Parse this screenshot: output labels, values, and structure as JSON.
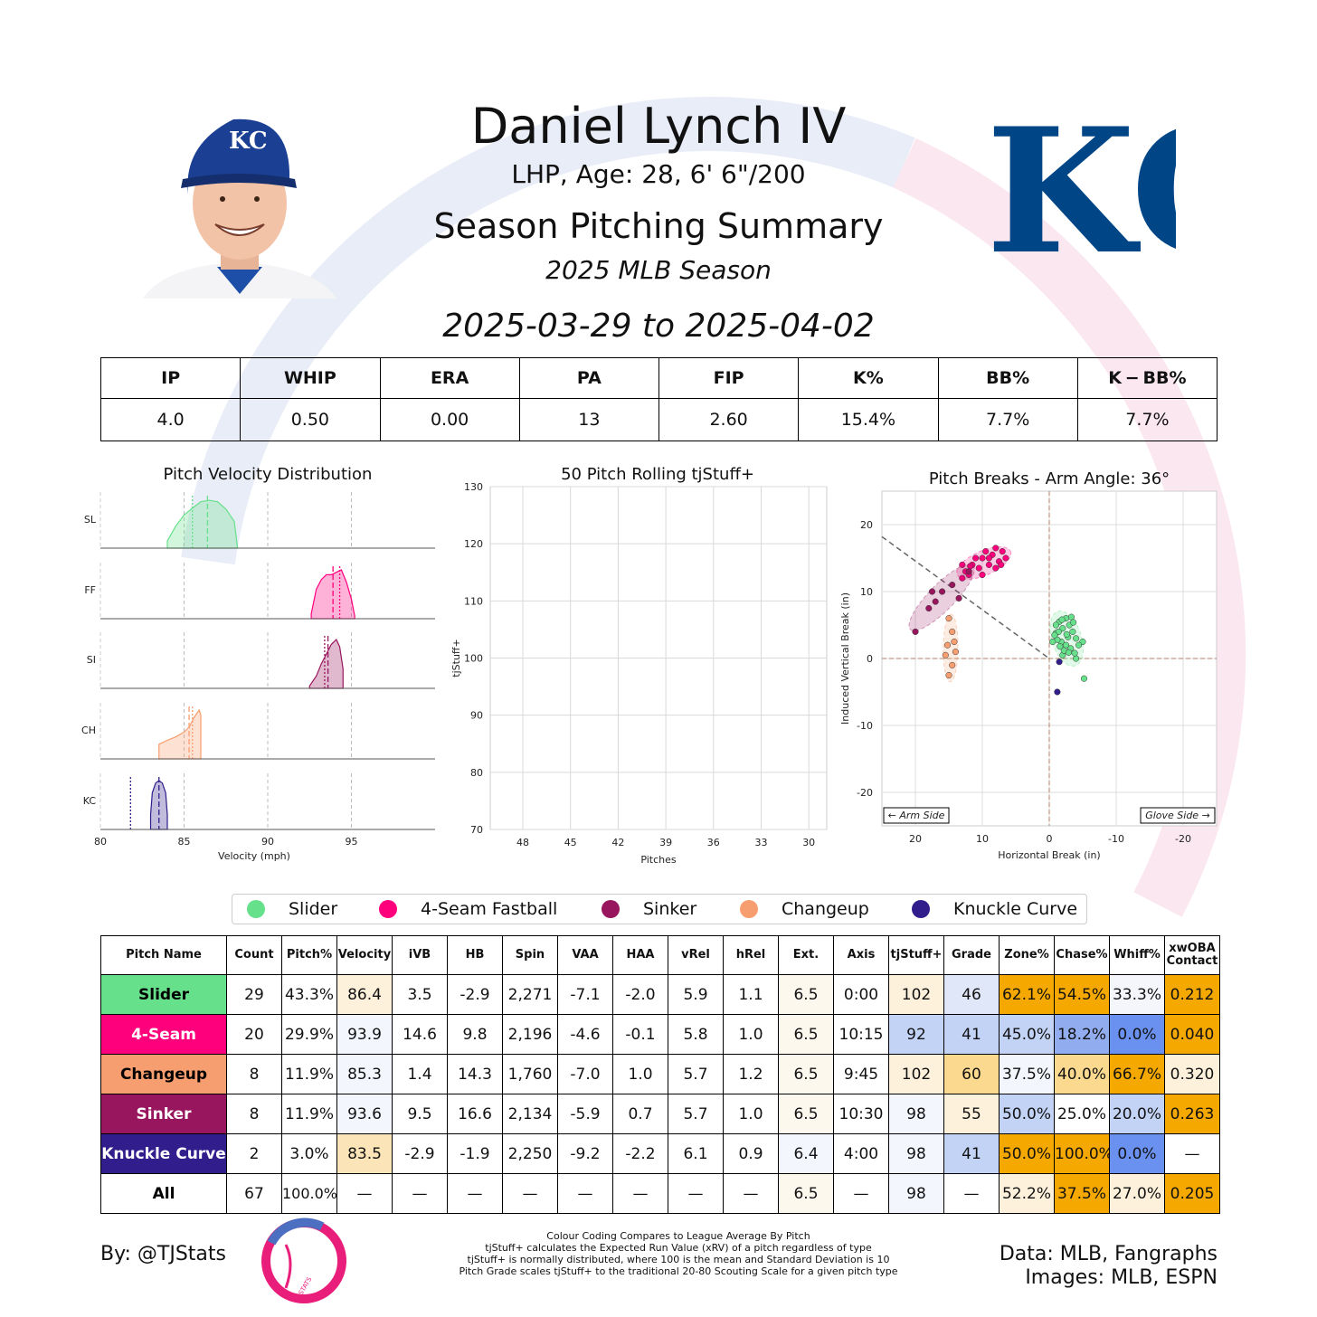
{
  "header": {
    "name": "Daniel Lynch IV",
    "bio": "LHP, Age: 28, 6' 6\"/200",
    "summary_title": "Season Pitching Summary",
    "season": "2025 MLB Season",
    "date_range": "2025-03-29 to 2025-04-02",
    "team_logo_text": "KC"
  },
  "stats": {
    "headers": [
      "IP",
      "WHIP",
      "ERA",
      "PA",
      "FIP",
      "K%",
      "BB%",
      "K − BB%"
    ],
    "values": [
      "4.0",
      "0.50",
      "0.00",
      "13",
      "2.60",
      "15.4%",
      "7.7%",
      "7.7%"
    ]
  },
  "colors": {
    "slider": "#66e08a",
    "fourseam": "#ff007d",
    "sinker": "#98165d",
    "changeup": "#f79e70",
    "knuckle_curve": "#311d8b",
    "high": "#f5a800",
    "low": "#6a91f0",
    "accent_blue": "#004687"
  },
  "chart_data": [
    {
      "type": "area",
      "title": "Pitch Velocity Distribution",
      "xlabel": "Velocity (mph)",
      "ylabel": "",
      "xlim": [
        80,
        100
      ],
      "xticks": [
        "80",
        "85",
        "90",
        "95"
      ],
      "series": [
        {
          "name": "SL",
          "mean": 86.4,
          "league_mean": 85.5,
          "x": [
            84,
            84.5,
            85,
            85.5,
            86,
            86.5,
            87,
            87.5,
            88,
            88.2
          ],
          "y": [
            0.15,
            0.45,
            0.68,
            0.82,
            0.95,
            0.98,
            0.95,
            0.8,
            0.55,
            0.0
          ]
        },
        {
          "name": "FF",
          "mean": 93.9,
          "league_mean": 94.3,
          "x": [
            92.6,
            92.9,
            93.2,
            93.5,
            93.8,
            94.1,
            94.4,
            94.7,
            95.0,
            95.2
          ],
          "y": [
            0.1,
            0.6,
            0.8,
            0.9,
            0.9,
            0.95,
            1.0,
            0.75,
            0.4,
            0.05
          ]
        },
        {
          "name": "SI",
          "mean": 93.6,
          "league_mean": 93.4,
          "x": [
            92.5,
            92.9,
            93.2,
            93.5,
            93.8,
            94.1,
            94.3,
            94.5
          ],
          "y": [
            0.05,
            0.25,
            0.5,
            0.7,
            0.9,
            1.0,
            0.85,
            0.4
          ]
        },
        {
          "name": "CH",
          "mean": 85.3,
          "league_mean": 85.5,
          "x": [
            83.5,
            84.0,
            84.5,
            85.0,
            85.3,
            85.6,
            85.9,
            86.0
          ],
          "y": [
            0.3,
            0.38,
            0.45,
            0.55,
            0.65,
            0.85,
            1.0,
            0.9
          ]
        },
        {
          "name": "KC",
          "mean": 83.5,
          "league_mean": 81.8,
          "x": [
            83.0,
            83.1,
            83.3,
            83.5,
            83.7,
            83.9,
            84.0
          ],
          "y": [
            0.3,
            0.75,
            0.95,
            1.0,
            0.95,
            0.75,
            0.3
          ]
        }
      ]
    },
    {
      "type": "line",
      "title": "50 Pitch Rolling tjStuff+",
      "xlabel": "Pitches",
      "ylabel": "tjStuff+",
      "ylim": [
        70,
        130
      ],
      "yticks": [
        "130",
        "120",
        "110",
        "100",
        "90",
        "80",
        "70"
      ],
      "xticks": [
        "48",
        "45",
        "42",
        "39",
        "36",
        "33",
        "30"
      ],
      "series": []
    },
    {
      "type": "scatter",
      "title": "Pitch Breaks - Arm Angle: 36°",
      "xlabel": "Horizontal Break (in)",
      "ylabel": "Induced Vertical Break (in)",
      "xlim": [
        25,
        -25
      ],
      "ylim": [
        -25,
        25
      ],
      "xticks": [
        "20",
        "10",
        "0",
        "-10",
        "-20"
      ],
      "yticks": [
        "20",
        "10",
        "0",
        "-10",
        "-20"
      ],
      "arm_side_label": "← Arm Side",
      "glove_side_label": "Glove Side →",
      "series": [
        {
          "name": "Slider",
          "points": [
            [
              -1.5,
              5.5
            ],
            [
              -2.5,
              6
            ],
            [
              -3,
              5
            ],
            [
              -2,
              4.5
            ],
            [
              -1,
              3.8
            ],
            [
              -2.8,
              3.2
            ],
            [
              -3.5,
              4
            ],
            [
              -1.8,
              2.5
            ],
            [
              -2.5,
              2
            ],
            [
              -3.2,
              1.5
            ],
            [
              -4,
              3
            ],
            [
              -1.2,
              2.8
            ],
            [
              -0.5,
              2.5
            ],
            [
              -2,
              0.5
            ],
            [
              -4,
              0
            ],
            [
              -5,
              2.5
            ],
            [
              -5.2,
              -3
            ],
            [
              -1,
              5
            ],
            [
              -2.2,
              1.2
            ],
            [
              -3.8,
              0.8
            ],
            [
              -1.4,
              4
            ],
            [
              -2.6,
              3.6
            ],
            [
              -3.3,
              6.2
            ],
            [
              -1.9,
              5.8
            ],
            [
              -0.8,
              3.5
            ],
            [
              -4.4,
              2
            ],
            [
              -2.9,
              0.9
            ],
            [
              -1.6,
              1.8
            ],
            [
              -3.6,
              5.4
            ]
          ]
        },
        {
          "name": "4-Seam Fastball",
          "points": [
            [
              13,
              14
            ],
            [
              12.5,
              13
            ],
            [
              11.5,
              14
            ],
            [
              10.5,
              13.5
            ],
            [
              10,
              15
            ],
            [
              9,
              14
            ],
            [
              8,
              13.5
            ],
            [
              7.5,
              14.5
            ],
            [
              8.5,
              15.5
            ],
            [
              9.5,
              16
            ],
            [
              7,
              16
            ],
            [
              6.5,
              15
            ],
            [
              11,
              15
            ],
            [
              12,
              12.5
            ],
            [
              13,
              12
            ],
            [
              10,
              12.5
            ],
            [
              8,
              16.5
            ],
            [
              9,
              15
            ],
            [
              7.2,
              14
            ],
            [
              11.8,
              13.8
            ]
          ]
        },
        {
          "name": "Sinker",
          "points": [
            [
              20,
              4
            ],
            [
              17.5,
              10
            ],
            [
              18,
              7.5
            ],
            [
              16,
              10
            ],
            [
              17,
              8.5
            ],
            [
              14.5,
              11
            ],
            [
              13.5,
              9
            ],
            [
              12,
              13
            ]
          ]
        },
        {
          "name": "Changeup",
          "points": [
            [
              15,
              6
            ],
            [
              14.5,
              4
            ],
            [
              15.5,
              0.5
            ],
            [
              14,
              1
            ],
            [
              14.5,
              -1
            ],
            [
              15,
              -2.5
            ],
            [
              14.2,
              2.5
            ],
            [
              15.2,
              2
            ]
          ]
        },
        {
          "name": "Knuckle Curve",
          "points": [
            [
              -1.5,
              -0.5
            ],
            [
              -1.2,
              -5
            ]
          ]
        }
      ]
    }
  ],
  "legend": [
    "Slider",
    "4-Seam Fastball",
    "Sinker",
    "Changeup",
    "Knuckle Curve"
  ],
  "pitch_table": {
    "headers": [
      "Pitch Name",
      "Count",
      "Pitch%",
      "Velocity",
      "iVB",
      "HB",
      "Spin",
      "VAA",
      "HAA",
      "vRel",
      "hRel",
      "Ext.",
      "Axis",
      "tjStuff+",
      "Grade",
      "Zone%",
      "Chase%",
      "Whiff%",
      "xwOBA Contact"
    ],
    "rows": [
      {
        "name": "Slider",
        "cells": [
          "29",
          "43.3%",
          "86.4",
          "3.5",
          "-2.9",
          "2,271",
          "-7.1",
          "-2.0",
          "5.9",
          "1.1",
          "6.5",
          "0:00",
          "102",
          "46",
          "62.1%",
          "54.5%",
          "33.3%",
          "0.212"
        ]
      },
      {
        "name": "4-Seam",
        "cells": [
          "20",
          "29.9%",
          "93.9",
          "14.6",
          "9.8",
          "2,196",
          "-4.6",
          "-0.1",
          "5.8",
          "1.0",
          "6.5",
          "10:15",
          "92",
          "41",
          "45.0%",
          "18.2%",
          "0.0%",
          "0.040"
        ]
      },
      {
        "name": "Changeup",
        "cells": [
          "8",
          "11.9%",
          "85.3",
          "1.4",
          "14.3",
          "1,760",
          "-7.0",
          "1.0",
          "5.7",
          "1.2",
          "6.5",
          "9:45",
          "102",
          "60",
          "37.5%",
          "40.0%",
          "66.7%",
          "0.320"
        ]
      },
      {
        "name": "Sinker",
        "cells": [
          "8",
          "11.9%",
          "93.6",
          "9.5",
          "16.6",
          "2,134",
          "-5.9",
          "0.7",
          "5.7",
          "1.0",
          "6.5",
          "10:30",
          "98",
          "55",
          "50.0%",
          "25.0%",
          "20.0%",
          "0.263"
        ]
      },
      {
        "name": "Knuckle Curve",
        "cells": [
          "2",
          "3.0%",
          "83.5",
          "-2.9",
          "-1.9",
          "2,250",
          "-9.2",
          "-2.2",
          "6.1",
          "0.9",
          "6.4",
          "4:00",
          "98",
          "41",
          "50.0%",
          "100.0%",
          "0.0%",
          "—"
        ]
      },
      {
        "name": "All",
        "cells": [
          "67",
          "100.0%",
          "—",
          "—",
          "—",
          "—",
          "—",
          "—",
          "—",
          "—",
          "6.5",
          "—",
          "98",
          "—",
          "52.2%",
          "37.5%",
          "27.0%",
          "0.205"
        ]
      }
    ]
  },
  "footer": {
    "author": "By: @TJStats",
    "notes": [
      "Colour Coding Compares to League Average By Pitch",
      "tjStuff+ calculates the Expected Run Value (xRV) of a pitch regardless of type",
      "tjStuff+ is normally distributed, where 100 is the mean and Standard Deviation is 10",
      "Pitch Grade scales tjStuff+ to the traditional 20-80 Scouting Scale for a given pitch type"
    ],
    "data_credit": "Data: MLB, Fangraphs",
    "image_credit": "Images: MLB, ESPN",
    "logo_text": "STATS"
  }
}
